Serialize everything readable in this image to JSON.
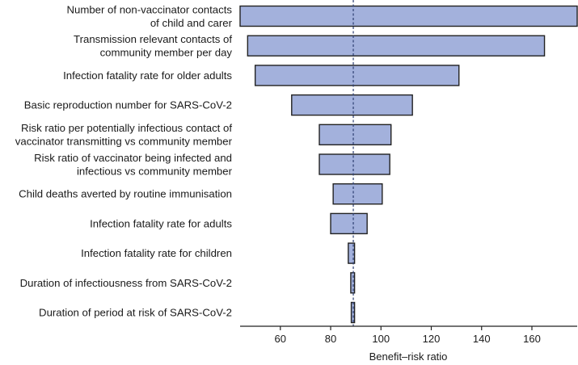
{
  "chart_data": {
    "type": "bar",
    "orientation": "horizontal-tornado",
    "title": "",
    "xlabel": "Benefit–risk ratio",
    "ylabel": "",
    "xlim": [
      44,
      178
    ],
    "xticks": [
      60,
      80,
      100,
      120,
      140,
      160
    ],
    "reference_value": 89,
    "bar_color": "#a3b1dc",
    "reference_color": "#2d3f73",
    "categories": [
      {
        "lines": [
          "Number of non-vaccinator contacts",
          "of child and carer"
        ],
        "low": 44,
        "high": 178
      },
      {
        "lines": [
          "Transmission relevant contacts of",
          "community member per day"
        ],
        "low": 47,
        "high": 165
      },
      {
        "lines": [
          "Infection fatality rate for older adults"
        ],
        "low": 50,
        "high": 131
      },
      {
        "lines": [
          "Basic reproduction number for SARS-CoV-2"
        ],
        "low": 64.5,
        "high": 112.5
      },
      {
        "lines": [
          "Risk ratio per potentially infectious contact of",
          "vaccinator transmitting vs community member"
        ],
        "low": 75.5,
        "high": 104
      },
      {
        "lines": [
          "Risk ratio of vaccinator being infected and",
          "infectious vs community member"
        ],
        "low": 75.5,
        "high": 103.5
      },
      {
        "lines": [
          "Child deaths averted by routine immunisation"
        ],
        "low": 81,
        "high": 100.5
      },
      {
        "lines": [
          "Infection fatality rate for adults"
        ],
        "low": 80,
        "high": 94.5
      },
      {
        "lines": [
          "Infection fatality rate for children"
        ],
        "low": 87,
        "high": 89.5
      },
      {
        "lines": [
          "Duration of infectiousness from SARS-CoV-2"
        ],
        "low": 88,
        "high": 89.5
      },
      {
        "lines": [
          "Duration of period at risk of SARS-CoV-2"
        ],
        "low": 88.2,
        "high": 89.5
      }
    ]
  }
}
